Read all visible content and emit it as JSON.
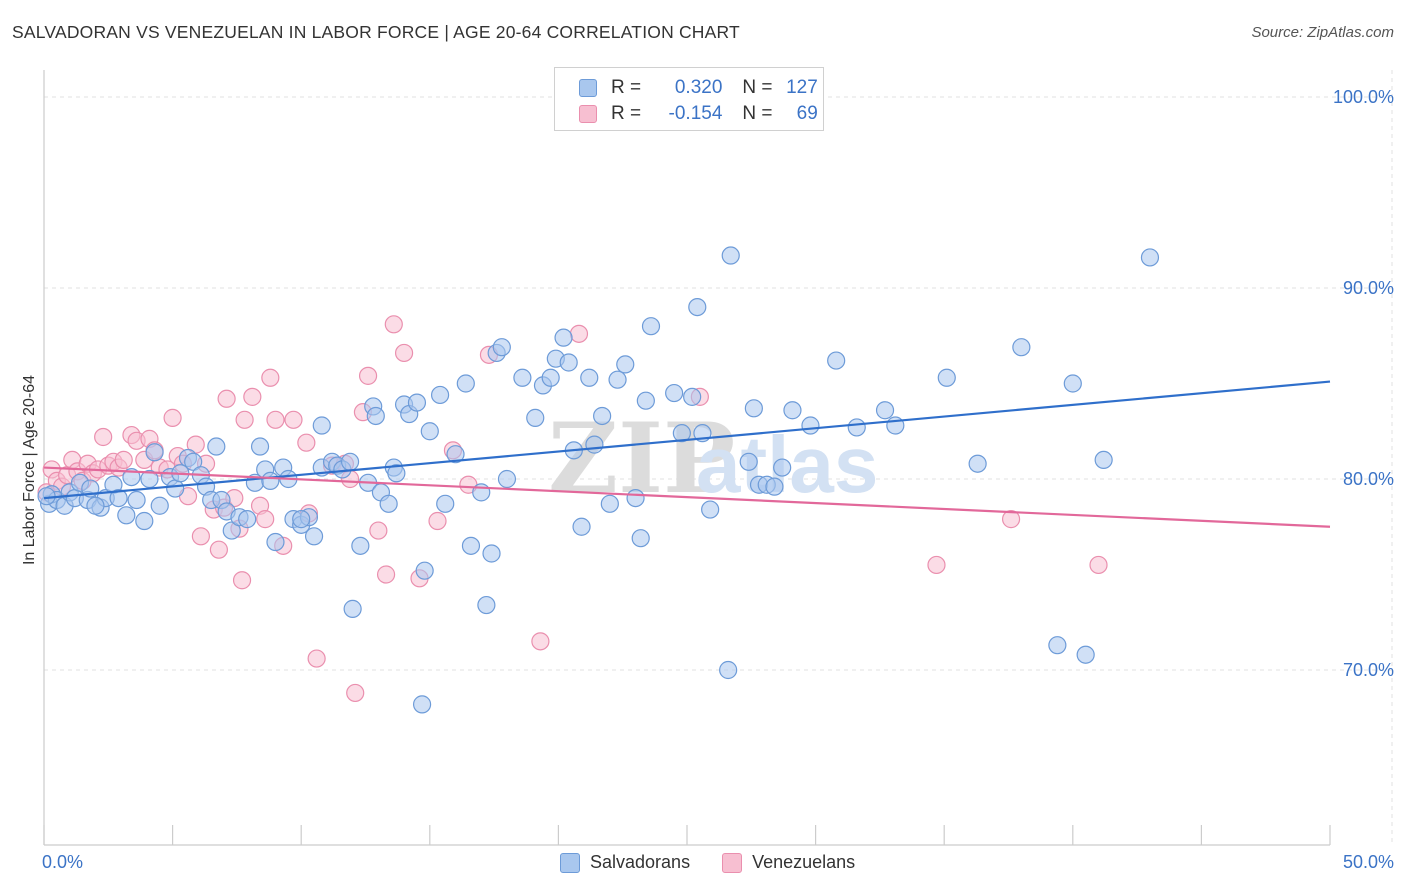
{
  "title": "SALVADORAN VS VENEZUELAN IN LABOR FORCE | AGE 20-64 CORRELATION CHART",
  "source": "Source: ZipAtlas.com",
  "watermark": "ZIPatlas",
  "legend": {
    "rows": [
      {
        "r_label": "R =",
        "r_value": "0.320",
        "n_label": "N =",
        "n_value": "127"
      },
      {
        "r_label": "R =",
        "r_value": "-0.154",
        "n_label": "N =",
        "n_value": "69"
      }
    ]
  },
  "colors": {
    "salvadoran_fill": "#a9c7ee",
    "salvadoran_stroke": "#6d9bd8",
    "salvadoran_line": "#2f6fcb",
    "venezuelan_fill": "#f7bfd1",
    "venezuelan_stroke": "#ea8fae",
    "venezuelan_line": "#e2689a",
    "tick_text": "#3b73c6"
  },
  "chart_data": {
    "type": "scatter",
    "title": "SALVADORAN VS VENEZUELAN IN LABOR FORCE | AGE 20-64 CORRELATION CHART",
    "xlabel": "",
    "ylabel": "In Labor Force | Age 20-64",
    "xlim": [
      0,
      50
    ],
    "ylim": [
      60,
      103
    ],
    "x_tick_labels": [
      "0.0%",
      "50.0%"
    ],
    "y_ticks": [
      {
        "value": 100,
        "label": "100.0%"
      },
      {
        "value": 90,
        "label": "90.0%"
      },
      {
        "value": 80,
        "label": "80.0%"
      },
      {
        "value": 70,
        "label": "70.0%"
      }
    ],
    "grid": true,
    "legend_position": "top-center",
    "series": [
      {
        "name": "Salvadorans",
        "r": 0.32,
        "n": 127,
        "trend": {
          "x": [
            0,
            50
          ],
          "y": [
            79.0,
            85.1
          ]
        },
        "points": [
          [
            0.2,
            78.7
          ],
          [
            0.3,
            79.2
          ],
          [
            0.5,
            78.9
          ],
          [
            0.8,
            78.6
          ],
          [
            1.0,
            79.3
          ],
          [
            1.2,
            79.0
          ],
          [
            1.4,
            79.8
          ],
          [
            1.7,
            78.9
          ],
          [
            1.8,
            79.5
          ],
          [
            2.2,
            78.5
          ],
          [
            2.4,
            79.0
          ],
          [
            2.7,
            79.7
          ],
          [
            2.9,
            79.0
          ],
          [
            3.2,
            78.1
          ],
          [
            3.4,
            80.1
          ],
          [
            3.6,
            78.9
          ],
          [
            3.9,
            77.8
          ],
          [
            4.1,
            80.0
          ],
          [
            4.3,
            81.4
          ],
          [
            4.5,
            78.6
          ],
          [
            4.9,
            80.1
          ],
          [
            5.1,
            79.5
          ],
          [
            5.3,
            80.3
          ],
          [
            5.6,
            81.1
          ],
          [
            5.8,
            80.9
          ],
          [
            6.1,
            80.2
          ],
          [
            6.3,
            79.6
          ],
          [
            6.5,
            78.9
          ],
          [
            6.7,
            81.7
          ],
          [
            6.9,
            78.9
          ],
          [
            7.1,
            78.3
          ],
          [
            7.3,
            77.3
          ],
          [
            7.6,
            78.0
          ],
          [
            7.9,
            77.9
          ],
          [
            8.2,
            79.8
          ],
          [
            8.4,
            81.7
          ],
          [
            8.6,
            80.5
          ],
          [
            8.8,
            79.9
          ],
          [
            9.0,
            76.7
          ],
          [
            9.3,
            80.6
          ],
          [
            9.5,
            80.0
          ],
          [
            9.7,
            77.9
          ],
          [
            10.0,
            77.6
          ],
          [
            10.3,
            78.0
          ],
          [
            10.5,
            77.0
          ],
          [
            10.8,
            82.8
          ],
          [
            10.8,
            80.6
          ],
          [
            11.2,
            80.9
          ],
          [
            11.4,
            80.7
          ],
          [
            11.6,
            80.5
          ],
          [
            11.9,
            80.9
          ],
          [
            12.0,
            73.2
          ],
          [
            12.3,
            76.5
          ],
          [
            12.6,
            79.8
          ],
          [
            12.8,
            83.8
          ],
          [
            12.9,
            83.3
          ],
          [
            13.1,
            79.3
          ],
          [
            13.4,
            78.7
          ],
          [
            13.6,
            80.6
          ],
          [
            13.7,
            80.3
          ],
          [
            14.0,
            83.9
          ],
          [
            14.2,
            83.4
          ],
          [
            14.5,
            84.0
          ],
          [
            14.8,
            75.2
          ],
          [
            14.7,
            68.2
          ],
          [
            15.0,
            82.5
          ],
          [
            15.4,
            84.4
          ],
          [
            15.6,
            78.7
          ],
          [
            16.0,
            81.3
          ],
          [
            16.4,
            85.0
          ],
          [
            16.6,
            76.5
          ],
          [
            17.0,
            79.3
          ],
          [
            17.2,
            73.4
          ],
          [
            17.4,
            76.1
          ],
          [
            17.6,
            86.6
          ],
          [
            17.8,
            86.9
          ],
          [
            18.0,
            80.0
          ],
          [
            18.6,
            85.3
          ],
          [
            19.1,
            83.2
          ],
          [
            19.4,
            84.9
          ],
          [
            19.7,
            85.3
          ],
          [
            19.9,
            86.3
          ],
          [
            20.2,
            87.4
          ],
          [
            20.4,
            86.1
          ],
          [
            20.6,
            81.5
          ],
          [
            20.9,
            77.5
          ],
          [
            21.2,
            85.3
          ],
          [
            21.4,
            81.8
          ],
          [
            21.7,
            83.3
          ],
          [
            22.0,
            78.7
          ],
          [
            22.3,
            85.2
          ],
          [
            22.6,
            86.0
          ],
          [
            23.0,
            79.0
          ],
          [
            23.2,
            76.9
          ],
          [
            23.4,
            84.1
          ],
          [
            23.6,
            88.0
          ],
          [
            24.5,
            84.5
          ],
          [
            24.8,
            82.4
          ],
          [
            25.2,
            84.3
          ],
          [
            25.4,
            89.0
          ],
          [
            25.6,
            82.4
          ],
          [
            25.9,
            78.4
          ],
          [
            26.7,
            91.7
          ],
          [
            26.6,
            70.0
          ],
          [
            27.4,
            80.9
          ],
          [
            27.6,
            83.7
          ],
          [
            27.8,
            79.7
          ],
          [
            28.1,
            79.7
          ],
          [
            28.4,
            79.6
          ],
          [
            28.7,
            80.6
          ],
          [
            29.1,
            83.6
          ],
          [
            29.8,
            82.8
          ],
          [
            30.8,
            86.2
          ],
          [
            31.6,
            82.7
          ],
          [
            32.7,
            83.6
          ],
          [
            33.1,
            82.8
          ],
          [
            35.1,
            85.3
          ],
          [
            36.3,
            80.8
          ],
          [
            38.0,
            86.9
          ],
          [
            39.4,
            71.3
          ],
          [
            40.0,
            85.0
          ],
          [
            40.5,
            70.8
          ],
          [
            41.2,
            81.0
          ],
          [
            43.0,
            91.6
          ],
          [
            0.1,
            79.1
          ],
          [
            2.0,
            78.6
          ],
          [
            10.0,
            77.9
          ]
        ]
      },
      {
        "name": "Venezuelans",
        "r": -0.154,
        "n": 69,
        "trend": {
          "x": [
            0,
            50
          ],
          "y": [
            80.6,
            77.5
          ]
        },
        "points": [
          [
            0.1,
            79.3
          ],
          [
            0.3,
            80.5
          ],
          [
            0.5,
            79.9
          ],
          [
            0.7,
            79.6
          ],
          [
            0.9,
            80.2
          ],
          [
            1.1,
            81.0
          ],
          [
            1.3,
            80.4
          ],
          [
            1.5,
            79.9
          ],
          [
            1.7,
            80.8
          ],
          [
            1.9,
            80.3
          ],
          [
            2.1,
            80.5
          ],
          [
            2.3,
            82.2
          ],
          [
            2.5,
            80.7
          ],
          [
            2.7,
            80.9
          ],
          [
            2.9,
            80.6
          ],
          [
            3.1,
            81.0
          ],
          [
            3.4,
            82.3
          ],
          [
            3.6,
            82.0
          ],
          [
            3.9,
            81.0
          ],
          [
            4.1,
            82.1
          ],
          [
            4.3,
            81.5
          ],
          [
            4.5,
            80.6
          ],
          [
            4.8,
            80.5
          ],
          [
            5.0,
            83.2
          ],
          [
            5.2,
            81.2
          ],
          [
            5.4,
            80.8
          ],
          [
            5.6,
            79.1
          ],
          [
            5.9,
            81.8
          ],
          [
            6.1,
            77.0
          ],
          [
            6.3,
            80.8
          ],
          [
            6.6,
            78.4
          ],
          [
            6.8,
            76.3
          ],
          [
            7.0,
            78.5
          ],
          [
            7.1,
            84.2
          ],
          [
            7.4,
            79.0
          ],
          [
            7.6,
            77.4
          ],
          [
            7.8,
            83.1
          ],
          [
            7.7,
            74.7
          ],
          [
            8.1,
            84.3
          ],
          [
            8.4,
            78.6
          ],
          [
            8.6,
            77.9
          ],
          [
            8.8,
            85.3
          ],
          [
            9.0,
            83.1
          ],
          [
            9.3,
            76.5
          ],
          [
            9.7,
            83.1
          ],
          [
            10.2,
            81.9
          ],
          [
            10.3,
            78.2
          ],
          [
            10.6,
            70.6
          ],
          [
            11.2,
            80.7
          ],
          [
            11.7,
            80.8
          ],
          [
            11.9,
            80.0
          ],
          [
            12.1,
            68.8
          ],
          [
            12.4,
            83.5
          ],
          [
            12.6,
            85.4
          ],
          [
            13.0,
            77.3
          ],
          [
            13.3,
            75.0
          ],
          [
            13.6,
            88.1
          ],
          [
            14.0,
            86.6
          ],
          [
            14.6,
            74.8
          ],
          [
            15.3,
            77.8
          ],
          [
            15.9,
            81.5
          ],
          [
            16.5,
            79.7
          ],
          [
            17.3,
            86.5
          ],
          [
            19.3,
            71.5
          ],
          [
            20.8,
            87.6
          ],
          [
            25.5,
            84.3
          ],
          [
            34.7,
            75.5
          ],
          [
            37.6,
            77.9
          ],
          [
            41.0,
            75.5
          ]
        ]
      }
    ]
  },
  "bottom_legend": [
    "Salvadorans",
    "Venezuelans"
  ],
  "axis": {
    "x_left": "0.0%",
    "x_right": "50.0%",
    "y_ticks": [
      "100.0%",
      "90.0%",
      "80.0%",
      "70.0%"
    ]
  }
}
